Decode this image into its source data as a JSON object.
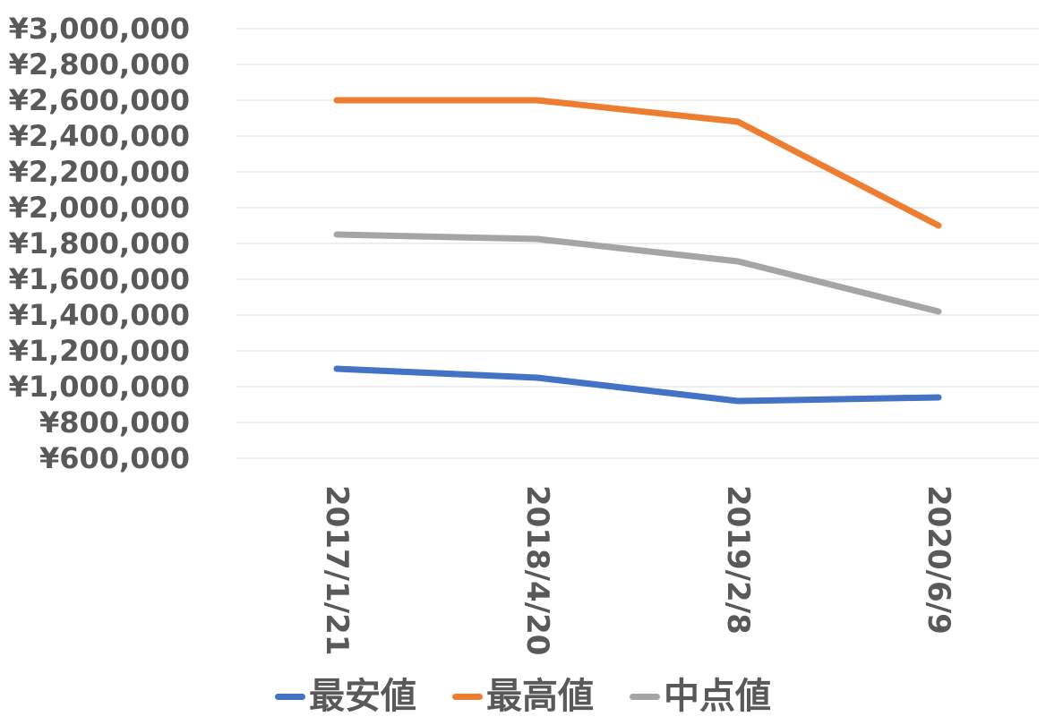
{
  "chart_data": {
    "type": "line",
    "categories": [
      "2017/1/21",
      "2018/4/20",
      "2019/2/8",
      "2020/6/9"
    ],
    "series": [
      {
        "name": "最安値",
        "color": "#4472c4",
        "values": [
          1100000,
          1050000,
          920000,
          940000
        ]
      },
      {
        "name": "最高値",
        "color": "#ed7d31",
        "values": [
          2600000,
          2600000,
          2480000,
          1900000
        ]
      },
      {
        "name": "中点値",
        "color": "#a5a5a5",
        "values": [
          1850000,
          1825000,
          1700000,
          1420000
        ]
      }
    ],
    "yticks": [
      "¥600,000",
      "¥800,000",
      "¥1,000,000",
      "¥1,200,000",
      "¥1,400,000",
      "¥1,600,000",
      "¥1,800,000",
      "¥2,000,000",
      "¥2,200,000",
      "¥2,400,000",
      "¥2,600,000",
      "¥2,800,000",
      "¥3,000,000"
    ],
    "ylim": [
      600000,
      3000000
    ],
    "ystep": 200000,
    "grid": true,
    "legend_position": "bottom"
  }
}
